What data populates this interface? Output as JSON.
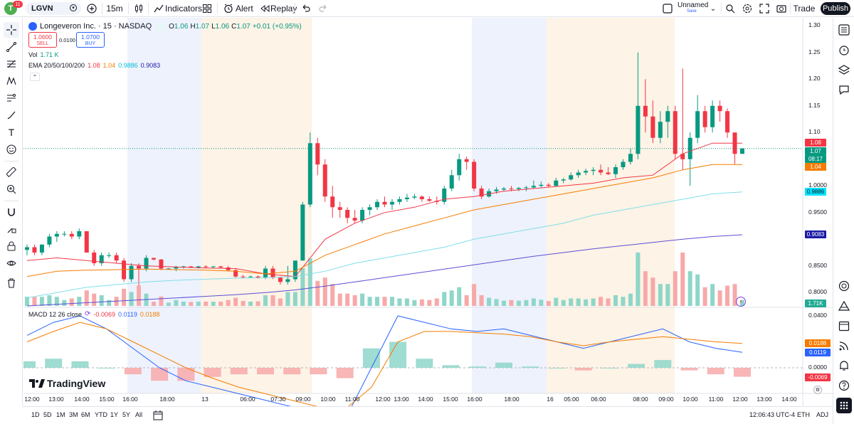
{
  "topbar": {
    "avatar_letter": "T",
    "notif_count": "11",
    "symbol": "LGVN",
    "interval": "15m",
    "indicators_label": "Indicators",
    "alert_label": "Alert",
    "replay_label": "Replay",
    "layout_name": "Unnamed",
    "layout_status": "Save",
    "trade_label": "Trade",
    "publish_label": "Publish"
  },
  "legend": {
    "title": "Longeveron Inc. · 15 · NASDAQ",
    "ohlc": [
      {
        "k": "O",
        "v": "1.06"
      },
      {
        "k": "H",
        "v": "1.07"
      },
      {
        "k": "L",
        "v": "1.06"
      },
      {
        "k": "C",
        "v": "1.07"
      }
    ],
    "change": "+0.01 (+0.95%)",
    "sell_price": "1.0600",
    "sell_label": "SELL",
    "spread": "0.0100",
    "buy_price": "1.0700",
    "buy_label": "BUY",
    "vol_label": "Vol",
    "vol_value": "1.71 K",
    "ema_label": "EMA 20/50/100/200",
    "ema_values": [
      "1.08",
      "1.04",
      "0.9886",
      "0.9083"
    ],
    "macd_label": "MACD 12 26 close",
    "macd_values": [
      "-0.0069",
      "0.0119",
      "0.0188"
    ]
  },
  "price_axis": {
    "ticks": [
      "1.30",
      "1.25",
      "1.20",
      "1.15",
      "1.10",
      "1.0000",
      "0.9500",
      "0.8500",
      "0.8000"
    ],
    "tags": [
      {
        "text": "1.08",
        "color": "#f23645"
      },
      {
        "text": "1.07",
        "color": "#089981"
      },
      {
        "text": "08:17",
        "color": "#089981"
      },
      {
        "text": "1.04",
        "color": "#f57c00"
      },
      {
        "text": "0.9886",
        "color": "#00e5ff"
      },
      {
        "text": "0.9083",
        "color": "#1a1aa6"
      },
      {
        "text": "1.71K",
        "color": "#22ab94"
      }
    ]
  },
  "macd_axis": {
    "ticks": [
      "0.0400",
      "0.0000"
    ],
    "tags": [
      {
        "text": "0.0188",
        "color": "#f57c00"
      },
      {
        "text": "0.0119",
        "color": "#2962ff"
      },
      {
        "text": "-0.0069",
        "color": "#f23645"
      }
    ]
  },
  "time_axis": [
    "12:00",
    "13:00",
    "14:00",
    "15:00",
    "16:00",
    "18:00",
    "13",
    "06:00",
    "07:30",
    "09:00",
    "10:00",
    "11:00",
    "12:00",
    "13:00",
    "14:00",
    "15:00",
    "16:00",
    "18:00",
    "16",
    "05:00",
    "06:00",
    "08:00",
    "09:00",
    "10:00",
    "11:00",
    "12:00",
    "13:00",
    "14:00"
  ],
  "watermark": "TradingView",
  "bottombar": {
    "ranges": [
      "1D",
      "5D",
      "1M",
      "3M",
      "6M",
      "YTD",
      "1Y",
      "5Y",
      "All"
    ],
    "clock": "12:06:43 UTC-4",
    "session": "ETH",
    "adj": "ADJ"
  },
  "chart_data": {
    "type": "candlestick",
    "title": "Longeveron Inc. · 15 · NASDAQ",
    "candles": [
      {
        "t": "12:00",
        "o": 0.88,
        "h": 0.89,
        "l": 0.87,
        "c": 0.885
      },
      {
        "t": "12:15",
        "o": 0.885,
        "h": 0.89,
        "l": 0.87,
        "c": 0.875
      },
      {
        "t": "12:30",
        "o": 0.875,
        "h": 0.89,
        "l": 0.87,
        "c": 0.89
      },
      {
        "t": "12:45",
        "o": 0.89,
        "h": 0.91,
        "l": 0.885,
        "c": 0.905
      },
      {
        "t": "13:00",
        "o": 0.905,
        "h": 0.915,
        "l": 0.895,
        "c": 0.91
      },
      {
        "t": "13:15",
        "o": 0.91,
        "h": 0.915,
        "l": 0.905,
        "c": 0.91
      },
      {
        "t": "13:30",
        "o": 0.91,
        "h": 0.915,
        "l": 0.9,
        "c": 0.905
      },
      {
        "t": "13:45",
        "o": 0.905,
        "h": 0.92,
        "l": 0.9,
        "c": 0.915
      },
      {
        "t": "14:00",
        "o": 0.915,
        "h": 0.915,
        "l": 0.875,
        "c": 0.875
      },
      {
        "t": "14:15",
        "o": 0.875,
        "h": 0.88,
        "l": 0.85,
        "c": 0.855
      },
      {
        "t": "14:30",
        "o": 0.855,
        "h": 0.875,
        "l": 0.85,
        "c": 0.87
      },
      {
        "t": "14:45",
        "o": 0.87,
        "h": 0.875,
        "l": 0.865,
        "c": 0.87
      },
      {
        "t": "15:00",
        "o": 0.87,
        "h": 0.875,
        "l": 0.855,
        "c": 0.86
      },
      {
        "t": "15:15",
        "o": 0.86,
        "h": 0.865,
        "l": 0.82,
        "c": 0.825
      },
      {
        "t": "15:30",
        "o": 0.825,
        "h": 0.855,
        "l": 0.82,
        "c": 0.85
      },
      {
        "t": "15:45",
        "o": 0.85,
        "h": 0.855,
        "l": 0.8,
        "c": 0.845
      },
      {
        "t": "16:00",
        "o": 0.845,
        "h": 0.87,
        "l": 0.84,
        "c": 0.865
      },
      {
        "t": "16:15",
        "o": 0.865,
        "h": 0.865,
        "l": 0.86,
        "c": 0.862
      },
      {
        "t": "16:30",
        "o": 0.862,
        "h": 0.863,
        "l": 0.842,
        "c": 0.845
      },
      {
        "t": "17:00",
        "o": 0.845,
        "h": 0.846,
        "l": 0.844,
        "c": 0.845
      },
      {
        "t": "17:30",
        "o": 0.845,
        "h": 0.85,
        "l": 0.84,
        "c": 0.848
      },
      {
        "t": "18:00",
        "o": 0.848,
        "h": 0.85,
        "l": 0.845,
        "c": 0.849
      },
      {
        "t": "18:30",
        "o": 0.849,
        "h": 0.85,
        "l": 0.846,
        "c": 0.847
      },
      {
        "t": "19:00",
        "o": 0.847,
        "h": 0.85,
        "l": 0.845,
        "c": 0.849
      },
      {
        "t": "19:30",
        "o": 0.849,
        "h": 0.851,
        "l": 0.846,
        "c": 0.848
      },
      {
        "t": "04:00",
        "o": 0.848,
        "h": 0.85,
        "l": 0.845,
        "c": 0.849
      },
      {
        "t": "05:00",
        "o": 0.849,
        "h": 0.85,
        "l": 0.845,
        "c": 0.847
      },
      {
        "t": "06:00",
        "o": 0.847,
        "h": 0.85,
        "l": 0.84,
        "c": 0.842
      },
      {
        "t": "06:30",
        "o": 0.842,
        "h": 0.845,
        "l": 0.828,
        "c": 0.83
      },
      {
        "t": "07:00",
        "o": 0.83,
        "h": 0.833,
        "l": 0.826,
        "c": 0.829
      },
      {
        "t": "07:30",
        "o": 0.829,
        "h": 0.832,
        "l": 0.827,
        "c": 0.83
      },
      {
        "t": "08:00",
        "o": 0.83,
        "h": 0.832,
        "l": 0.826,
        "c": 0.828
      },
      {
        "t": "08:30",
        "o": 0.828,
        "h": 0.85,
        "l": 0.825,
        "c": 0.845
      },
      {
        "t": "08:45",
        "o": 0.845,
        "h": 0.85,
        "l": 0.825,
        "c": 0.828
      },
      {
        "t": "09:00",
        "o": 0.828,
        "h": 0.83,
        "l": 0.815,
        "c": 0.82
      },
      {
        "t": "09:15",
        "o": 0.82,
        "h": 0.85,
        "l": 0.815,
        "c": 0.825
      },
      {
        "t": "09:30",
        "o": 0.825,
        "h": 0.855,
        "l": 0.82,
        "c": 0.86
      },
      {
        "t": "09:45",
        "o": 0.86,
        "h": 0.97,
        "l": 0.86,
        "c": 0.965
      },
      {
        "t": "10:00",
        "o": 0.965,
        "h": 1.1,
        "l": 0.96,
        "c": 1.08
      },
      {
        "t": "10:15",
        "o": 1.08,
        "h": 1.09,
        "l": 1.02,
        "c": 1.04
      },
      {
        "t": "10:30",
        "o": 1.04,
        "h": 1.05,
        "l": 0.97,
        "c": 0.98
      },
      {
        "t": "10:45",
        "o": 0.98,
        "h": 1.0,
        "l": 0.94,
        "c": 0.96
      },
      {
        "t": "11:00",
        "o": 0.96,
        "h": 0.97,
        "l": 0.94,
        "c": 0.955
      },
      {
        "t": "11:15",
        "o": 0.955,
        "h": 0.96,
        "l": 0.93,
        "c": 0.94
      },
      {
        "t": "11:30",
        "o": 0.94,
        "h": 0.955,
        "l": 0.93,
        "c": 0.935
      },
      {
        "t": "11:45",
        "o": 0.935,
        "h": 0.96,
        "l": 0.93,
        "c": 0.955
      },
      {
        "t": "12:00",
        "o": 0.955,
        "h": 0.965,
        "l": 0.945,
        "c": 0.96
      },
      {
        "t": "12:15",
        "o": 0.96,
        "h": 0.975,
        "l": 0.955,
        "c": 0.97
      },
      {
        "t": "12:30",
        "o": 0.97,
        "h": 0.98,
        "l": 0.96,
        "c": 0.965
      },
      {
        "t": "12:45",
        "o": 0.965,
        "h": 0.975,
        "l": 0.955,
        "c": 0.97
      },
      {
        "t": "13:00",
        "o": 0.97,
        "h": 0.98,
        "l": 0.965,
        "c": 0.975
      },
      {
        "t": "13:15",
        "o": 0.975,
        "h": 0.985,
        "l": 0.97,
        "c": 0.978
      },
      {
        "t": "13:30",
        "o": 0.978,
        "h": 0.985,
        "l": 0.975,
        "c": 0.98
      },
      {
        "t": "13:45",
        "o": 0.98,
        "h": 0.982,
        "l": 0.97,
        "c": 0.975
      },
      {
        "t": "14:00",
        "o": 0.975,
        "h": 0.98,
        "l": 0.97,
        "c": 0.972
      },
      {
        "t": "14:15",
        "o": 0.972,
        "h": 0.98,
        "l": 0.965,
        "c": 0.97
      },
      {
        "t": "14:30",
        "o": 0.97,
        "h": 1.0,
        "l": 0.965,
        "c": 0.995
      },
      {
        "t": "14:45",
        "o": 0.995,
        "h": 1.03,
        "l": 0.99,
        "c": 1.02
      },
      {
        "t": "15:00",
        "o": 1.02,
        "h": 1.06,
        "l": 1.01,
        "c": 1.05
      },
      {
        "t": "15:15",
        "o": 1.05,
        "h": 1.055,
        "l": 1.03,
        "c": 1.045
      },
      {
        "t": "15:30",
        "o": 1.045,
        "h": 1.05,
        "l": 0.99,
        "c": 0.995
      },
      {
        "t": "15:45",
        "o": 0.995,
        "h": 1.0,
        "l": 0.975,
        "c": 0.98
      },
      {
        "t": "16:00",
        "o": 0.98,
        "h": 0.995,
        "l": 0.978,
        "c": 0.99
      },
      {
        "t": "16:30",
        "o": 0.99,
        "h": 0.998,
        "l": 0.985,
        "c": 0.993
      },
      {
        "t": "17:00",
        "o": 0.993,
        "h": 0.998,
        "l": 0.99,
        "c": 0.995
      },
      {
        "t": "17:30",
        "o": 0.995,
        "h": 1.0,
        "l": 0.99,
        "c": 0.994
      },
      {
        "t": "18:00",
        "o": 0.994,
        "h": 0.998,
        "l": 0.99,
        "c": 0.996
      },
      {
        "t": "18:30",
        "o": 0.996,
        "h": 1.0,
        "l": 0.99,
        "c": 0.997
      },
      {
        "t": "19:00",
        "o": 0.997,
        "h": 1.01,
        "l": 0.995,
        "c": 1.0
      },
      {
        "t": "19:30",
        "o": 1.0,
        "h": 1.008,
        "l": 0.997,
        "c": 1.002
      },
      {
        "t": "04:00",
        "o": 1.002,
        "h": 1.005,
        "l": 0.998,
        "c": 1.0
      },
      {
        "t": "05:00",
        "o": 1.0,
        "h": 1.015,
        "l": 0.998,
        "c": 1.01
      },
      {
        "t": "05:30",
        "o": 1.01,
        "h": 1.015,
        "l": 1.005,
        "c": 1.012
      },
      {
        "t": "06:00",
        "o": 1.012,
        "h": 1.025,
        "l": 1.01,
        "c": 1.02
      },
      {
        "t": "06:30",
        "o": 1.02,
        "h": 1.03,
        "l": 1.015,
        "c": 1.025
      },
      {
        "t": "07:00",
        "o": 1.025,
        "h": 1.032,
        "l": 1.02,
        "c": 1.028
      },
      {
        "t": "07:30",
        "o": 1.028,
        "h": 1.035,
        "l": 1.02,
        "c": 1.03
      },
      {
        "t": "08:00",
        "o": 1.03,
        "h": 1.04,
        "l": 1.02,
        "c": 1.025
      },
      {
        "t": "08:15",
        "o": 1.025,
        "h": 1.035,
        "l": 1.02,
        "c": 1.022
      },
      {
        "t": "08:30",
        "o": 1.022,
        "h": 1.04,
        "l": 1.015,
        "c": 1.035
      },
      {
        "t": "08:45",
        "o": 1.035,
        "h": 1.05,
        "l": 1.03,
        "c": 1.045
      },
      {
        "t": "09:00",
        "o": 1.045,
        "h": 1.07,
        "l": 1.04,
        "c": 1.06
      },
      {
        "t": "09:15",
        "o": 1.06,
        "h": 1.25,
        "l": 1.05,
        "c": 1.15
      },
      {
        "t": "09:30",
        "o": 1.15,
        "h": 1.2,
        "l": 1.1,
        "c": 1.13
      },
      {
        "t": "09:45",
        "o": 1.13,
        "h": 1.16,
        "l": 1.08,
        "c": 1.09
      },
      {
        "t": "10:00",
        "o": 1.09,
        "h": 1.14,
        "l": 1.08,
        "c": 1.12
      },
      {
        "t": "10:15",
        "o": 1.12,
        "h": 1.15,
        "l": 1.09,
        "c": 1.14
      },
      {
        "t": "10:30",
        "o": 1.14,
        "h": 1.15,
        "l": 1.05,
        "c": 1.06
      },
      {
        "t": "10:45",
        "o": 1.06,
        "h": 1.22,
        "l": 1.03,
        "c": 1.05
      },
      {
        "t": "11:00",
        "o": 1.05,
        "h": 1.1,
        "l": 1.0,
        "c": 1.09
      },
      {
        "t": "11:15",
        "o": 1.09,
        "h": 1.17,
        "l": 1.08,
        "c": 1.14
      },
      {
        "t": "11:30",
        "o": 1.14,
        "h": 1.15,
        "l": 1.1,
        "c": 1.11
      },
      {
        "t": "11:45",
        "o": 1.11,
        "h": 1.16,
        "l": 1.1,
        "c": 1.15
      },
      {
        "t": "12:00",
        "o": 1.15,
        "h": 1.16,
        "l": 1.12,
        "c": 1.14
      },
      {
        "t": "12:15",
        "o": 1.14,
        "h": 1.145,
        "l": 1.09,
        "c": 1.1
      },
      {
        "t": "12:30",
        "o": 1.1,
        "h": 1.1,
        "l": 1.04,
        "c": 1.06
      },
      {
        "t": "12:45",
        "o": 1.06,
        "h": 1.07,
        "l": 1.06,
        "c": 1.07
      }
    ],
    "ema": {
      "EMA20": [
        0.86,
        0.865,
        0.86,
        0.855,
        0.85,
        0.848,
        0.846,
        0.845,
        0.835,
        0.83,
        0.9,
        0.93,
        0.95,
        0.96,
        0.975,
        0.98,
        0.99,
        0.995,
        1.0,
        1.005,
        1.015,
        1.02,
        1.06,
        1.08,
        1.08
      ],
      "EMA50": [
        0.83,
        0.84,
        0.842,
        0.843,
        0.844,
        0.843,
        0.842,
        0.84,
        0.835,
        0.84,
        0.87,
        0.89,
        0.91,
        0.925,
        0.94,
        0.955,
        0.965,
        0.975,
        0.985,
        0.995,
        1.005,
        1.015,
        1.03,
        1.04,
        1.04
      ],
      "EMA100": [
        0.79,
        0.8,
        0.81,
        0.815,
        0.82,
        0.823,
        0.825,
        0.827,
        0.828,
        0.83,
        0.84,
        0.855,
        0.865,
        0.875,
        0.885,
        0.9,
        0.91,
        0.92,
        0.93,
        0.945,
        0.955,
        0.965,
        0.975,
        0.985,
        0.9886
      ],
      "EMA200": [
        0.775,
        0.778,
        0.781,
        0.784,
        0.787,
        0.79,
        0.793,
        0.796,
        0.8,
        0.805,
        0.812,
        0.82,
        0.828,
        0.836,
        0.844,
        0.852,
        0.86,
        0.868,
        0.875,
        0.882,
        0.888,
        0.894,
        0.9,
        0.905,
        0.9083
      ]
    },
    "macd": {
      "macd": [
        0.025,
        0.035,
        0.04,
        0.03,
        0.015,
        0.0,
        -0.01,
        -0.015,
        -0.02,
        -0.025,
        -0.03,
        -0.035,
        -0.04,
        0.0,
        0.04,
        0.035,
        0.03,
        0.028,
        0.03,
        0.025,
        0.02,
        0.015,
        0.02,
        0.025,
        0.03,
        0.02,
        0.015,
        0.0119
      ],
      "signal": [
        0.02,
        0.028,
        0.035,
        0.03,
        0.02,
        0.01,
        0.0,
        -0.008,
        -0.015,
        -0.02,
        -0.025,
        -0.03,
        -0.032,
        -0.015,
        0.02,
        0.028,
        0.028,
        0.027,
        0.026,
        0.024,
        0.02,
        0.017,
        0.02,
        0.022,
        0.024,
        0.022,
        0.02,
        0.0188
      ],
      "histogram": [
        0.005,
        0.007,
        0.005,
        0.0,
        -0.005,
        -0.01,
        -0.01,
        -0.007,
        -0.005,
        -0.005,
        -0.005,
        -0.005,
        -0.008,
        0.015,
        0.02,
        0.007,
        0.002,
        0.001,
        0.004,
        0.001,
        0.0,
        -0.002,
        0.0,
        0.003,
        0.006,
        -0.002,
        -0.005,
        -0.0069
      ]
    },
    "ylim": [
      0.79,
      1.3
    ]
  }
}
